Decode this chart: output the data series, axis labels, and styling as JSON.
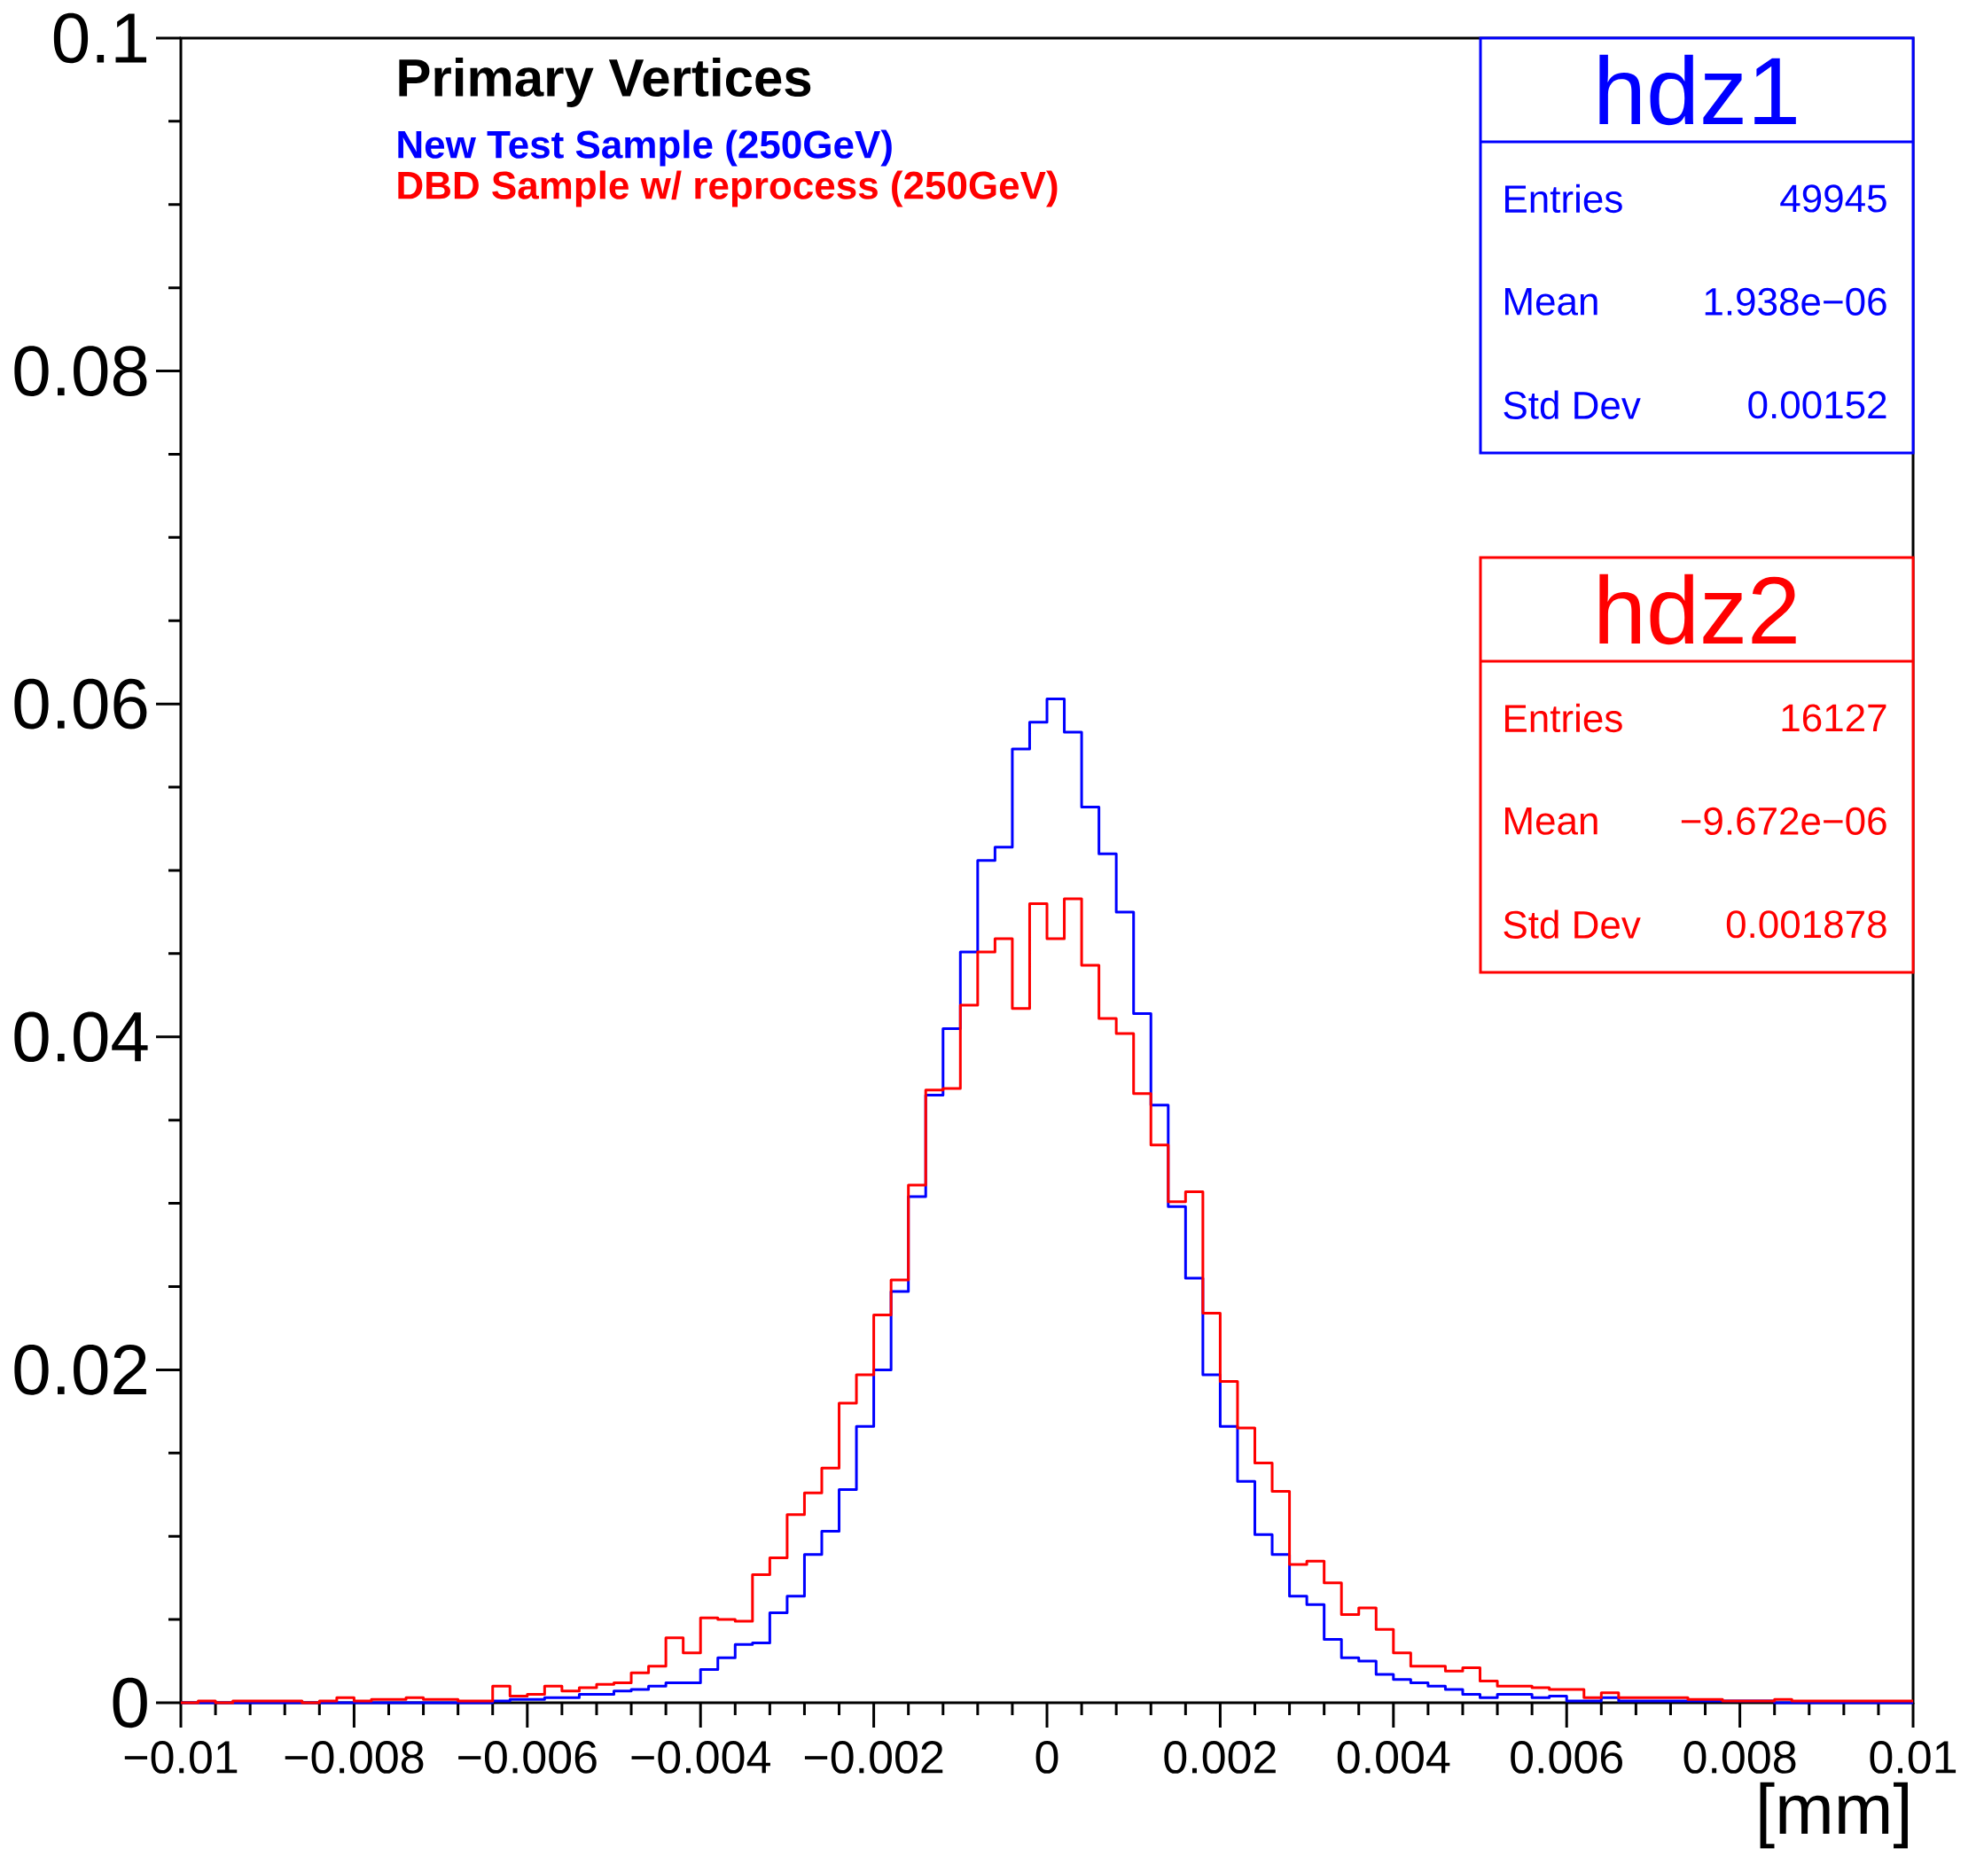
{
  "chart_data": {
    "type": "histogram",
    "title": "Primary Vertices",
    "xlabel": "[mm]",
    "legend": "top left",
    "bins": [
      -0.01,
      -0.0098,
      -0.0096,
      -0.0094,
      -0.0092,
      -0.009,
      -0.0088,
      -0.0086,
      -0.0084,
      -0.0082,
      -0.008,
      -0.0078,
      -0.0076,
      -0.0074,
      -0.0072,
      -0.007,
      -0.0068,
      -0.0066,
      -0.0064,
      -0.0062,
      -0.006,
      -0.0058,
      -0.0056,
      -0.0054,
      -0.0052,
      -0.005,
      -0.0048,
      -0.0046,
      -0.0044,
      -0.0042,
      -0.004,
      -0.0038,
      -0.0036,
      -0.0034,
      -0.0032,
      -0.003,
      -0.0028,
      -0.0026,
      -0.0024,
      -0.0022,
      -0.002,
      -0.0018,
      -0.0016,
      -0.0014,
      -0.0012,
      -0.001,
      -0.0008,
      -0.0006,
      -0.0004,
      -0.0002,
      0,
      0.0002,
      0.0004,
      0.0006,
      0.0008,
      0.001,
      0.0012,
      0.0014,
      0.0016,
      0.0018,
      0.002,
      0.0022,
      0.0024,
      0.0026,
      0.0028,
      0.003,
      0.0032,
      0.0034,
      0.0036,
      0.0038,
      0.004,
      0.0042,
      0.0044,
      0.0046,
      0.0048,
      0.005,
      0.0052,
      0.0054,
      0.0056,
      0.0058,
      0.006,
      0.0062,
      0.0064,
      0.0066,
      0.0068,
      0.007,
      0.0072,
      0.0074,
      0.0076,
      0.0078,
      0.008,
      0.0082,
      0.0084,
      0.0086,
      0.0088,
      0.009,
      0.0092,
      0.0094,
      0.0096,
      0.0098,
      0.01
    ],
    "series": [
      {
        "name": "New Test Sample (250GeV)",
        "color": "#0000ff",
        "values": [
          0,
          0,
          0,
          0,
          0,
          0,
          0,
          0,
          0,
          0,
          0,
          0,
          0,
          0,
          0,
          0,
          0,
          0,
          0.0001,
          0.0002,
          0.0002,
          0.0003,
          0.0003,
          0.0005,
          0.0005,
          0.0007,
          0.0008,
          0.001,
          0.0012,
          0.0012,
          0.002,
          0.0027,
          0.0035,
          0.0036,
          0.0054,
          0.0064,
          0.0089,
          0.0103,
          0.0128,
          0.0166,
          0.02,
          0.0247,
          0.0304,
          0.0365,
          0.0405,
          0.0451,
          0.0506,
          0.0514,
          0.0573,
          0.0589,
          0.0603,
          0.0583,
          0.0538,
          0.051,
          0.0475,
          0.0414,
          0.0359,
          0.0298,
          0.0255,
          0.0197,
          0.0166,
          0.0133,
          0.0101,
          0.0089,
          0.0064,
          0.0059,
          0.0038,
          0.0027,
          0.0025,
          0.0017,
          0.0014,
          0.0012,
          0.001,
          0.0008,
          0.0005,
          0.0003,
          0.0005,
          0.0005,
          0.0003,
          0.0004,
          0.0001,
          0.0001,
          0.0003,
          0.0001,
          0.0001,
          0.0001,
          0.0001,
          0.0001,
          0.0001,
          0.0001,
          0.0001,
          0.0001,
          0,
          0,
          0,
          0,
          0,
          0,
          0,
          0
        ]
      },
      {
        "name": "DBD Sample w/ reprocess (250GeV)",
        "color": "#ff0000",
        "values": [
          0,
          0.0001,
          0,
          0.0001,
          0.0001,
          0.0001,
          0.0001,
          0,
          0.0001,
          0.0003,
          0.0001,
          0.0002,
          0.0002,
          0.0003,
          0.0002,
          0.0002,
          0.0001,
          0.0001,
          0.001,
          0.0004,
          0.0005,
          0.001,
          0.0007,
          0.0009,
          0.0011,
          0.0012,
          0.0018,
          0.0022,
          0.0039,
          0.003,
          0.0051,
          0.005,
          0.0049,
          0.0077,
          0.0087,
          0.0113,
          0.0126,
          0.0141,
          0.018,
          0.0197,
          0.0233,
          0.0254,
          0.0311,
          0.0368,
          0.0369,
          0.0419,
          0.0451,
          0.0459,
          0.0417,
          0.048,
          0.0459,
          0.0483,
          0.0443,
          0.0411,
          0.0402,
          0.0366,
          0.0335,
          0.0301,
          0.0307,
          0.0234,
          0.0193,
          0.0165,
          0.0144,
          0.0127,
          0.0083,
          0.0085,
          0.0072,
          0.0053,
          0.0057,
          0.0044,
          0.003,
          0.0022,
          0.0022,
          0.0019,
          0.0021,
          0.0013,
          0.001,
          0.001,
          0.0009,
          0.0008,
          0.0008,
          0.0003,
          0.0006,
          0.0003,
          0.0003,
          0.0003,
          0.0003,
          0.0002,
          0.0002,
          0.0001,
          0.0001,
          0.0001,
          0.0002,
          0.0001,
          0.0001,
          0.0001,
          0.0001,
          0.0001,
          0.0001,
          0.0001
        ]
      }
    ],
    "xlim": [
      -0.01,
      0.01
    ],
    "ylim": [
      0,
      0.1
    ],
    "xticks": [
      {
        "value": -0.01,
        "label": "−0.01"
      },
      {
        "value": -0.008,
        "label": "−0.008"
      },
      {
        "value": -0.006,
        "label": "−0.006"
      },
      {
        "value": -0.004,
        "label": "−0.004"
      },
      {
        "value": -0.002,
        "label": "−0.002"
      },
      0,
      0.002,
      0.004,
      0.006,
      0.008,
      0.01
    ],
    "yticks": [
      0,
      0.02,
      0.04,
      0.06,
      0.08,
      0.1
    ],
    "annotations": [
      "hdz1",
      "Entries",
      "49945",
      "Mean",
      "1.938e−06",
      "Std Dev",
      "0.00152",
      "hdz2",
      "Entries",
      "16127",
      "Mean",
      "−9.672e−06",
      "Std Dev",
      "0.001878"
    ]
  }
}
